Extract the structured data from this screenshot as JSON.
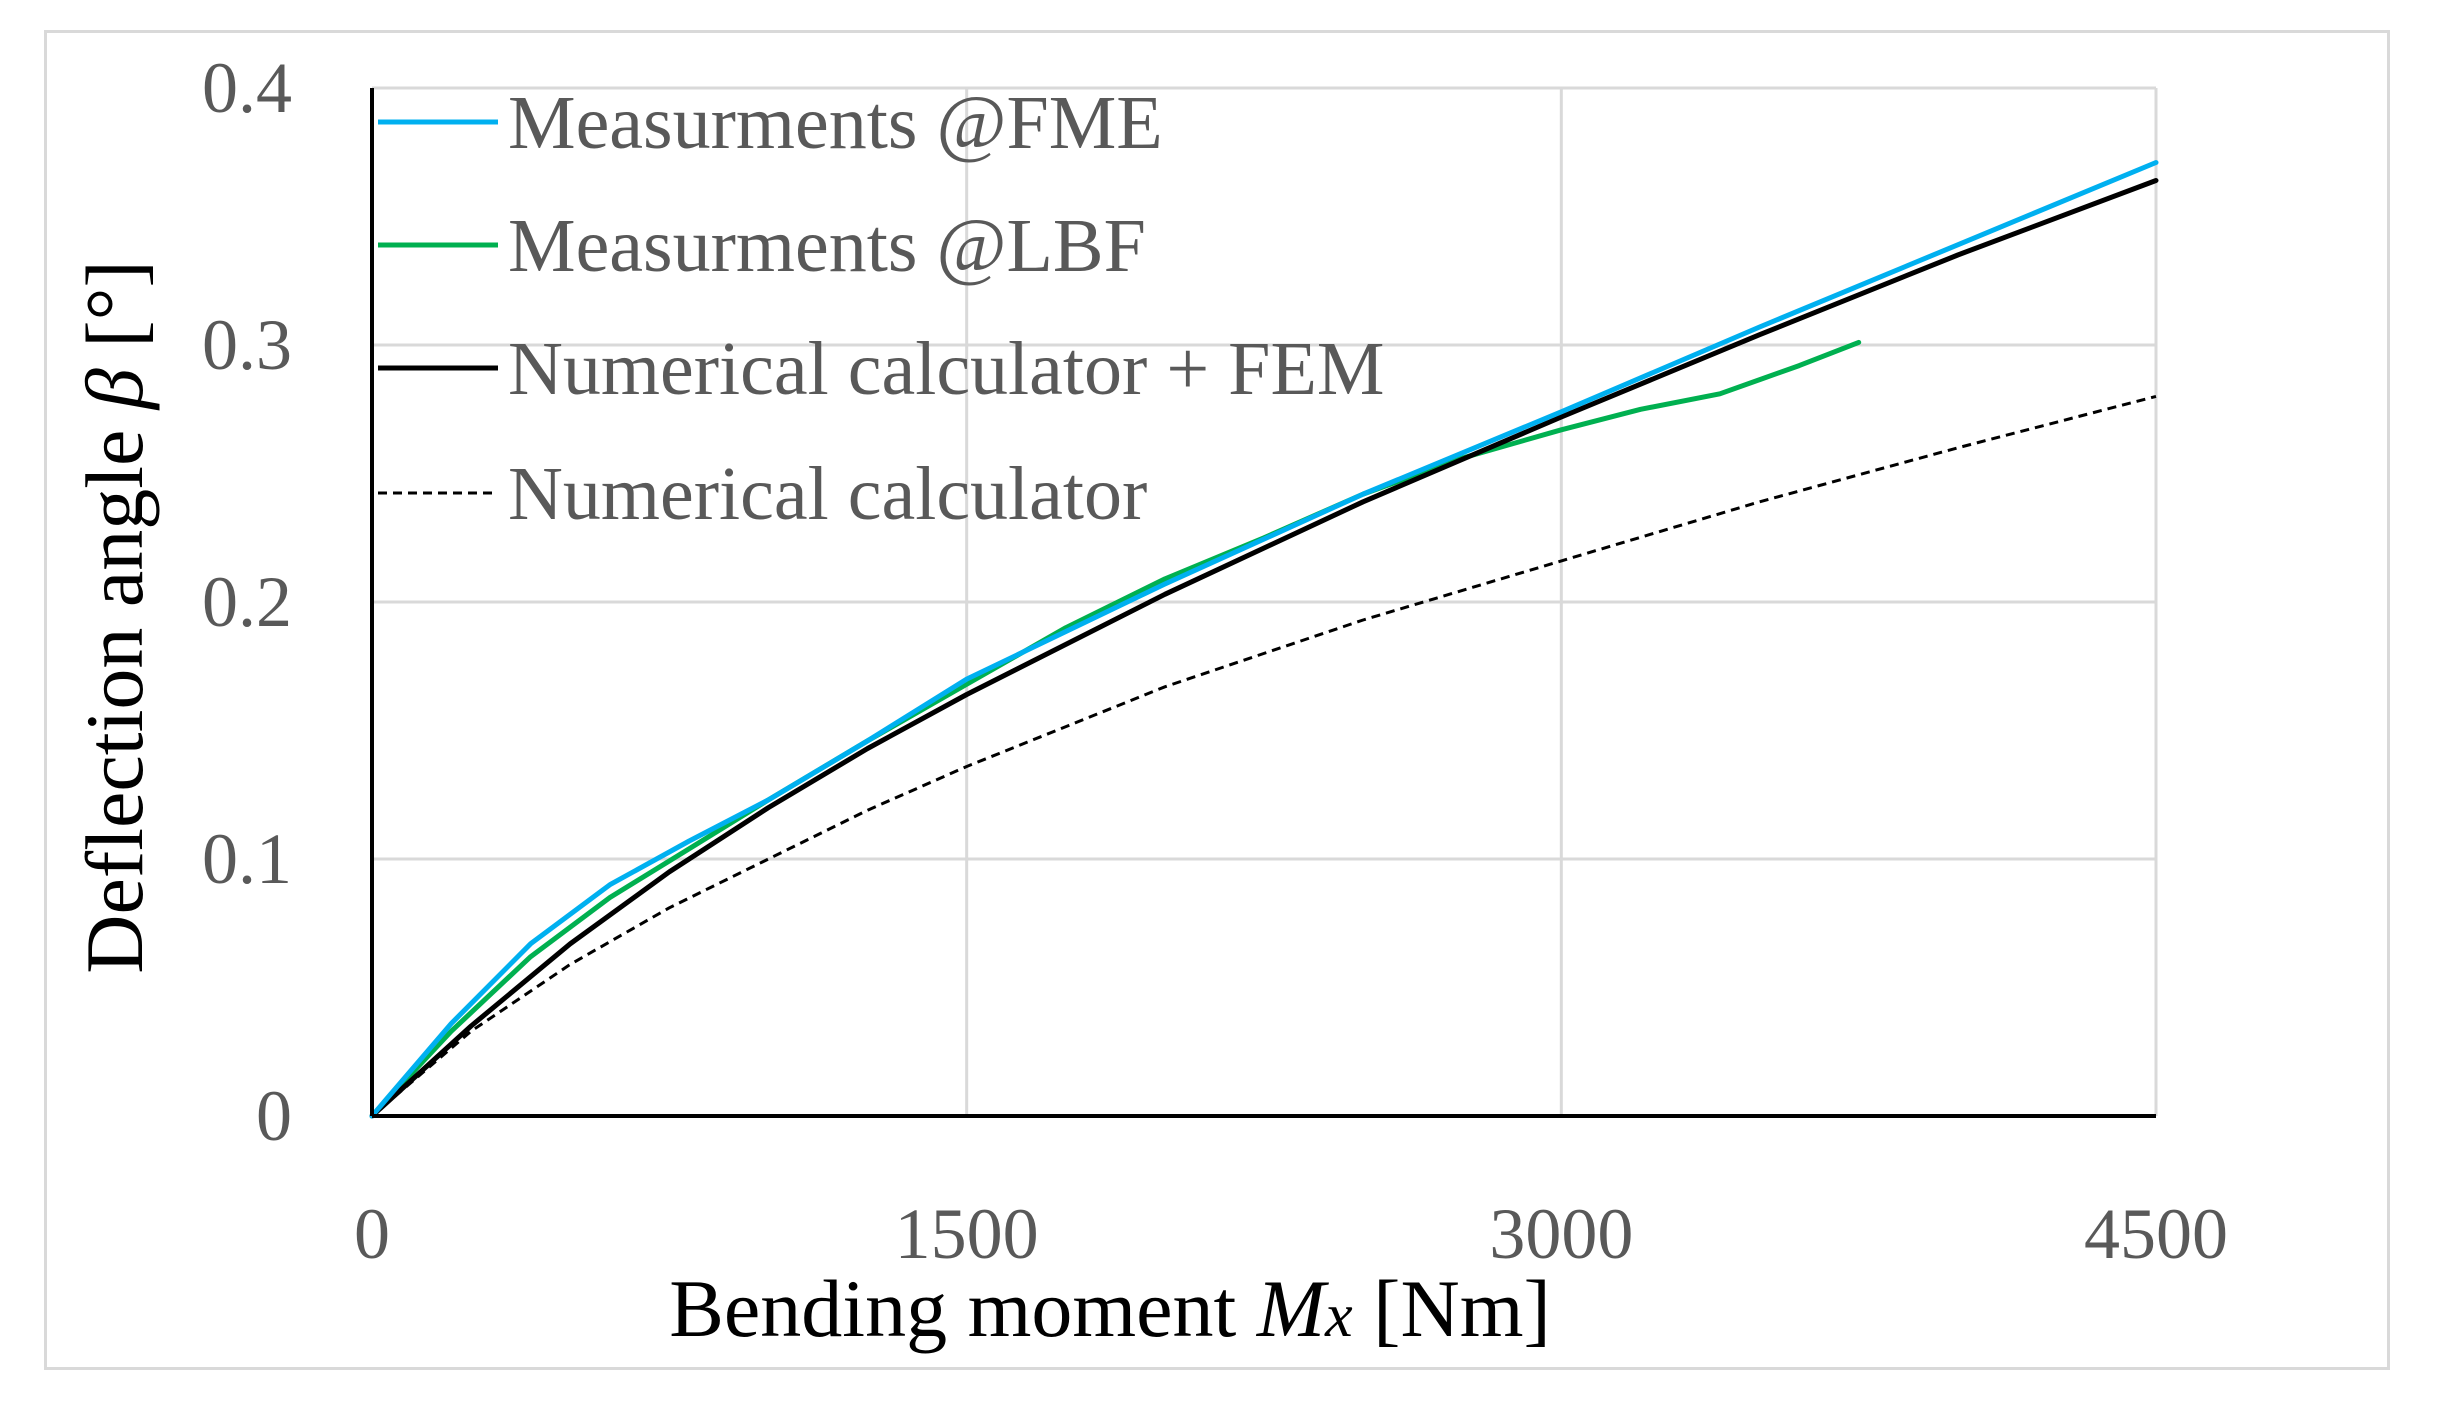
{
  "chart_data": {
    "type": "line",
    "xlabel": {
      "text": "Bending moment ",
      "sym": "M",
      "sub": "x",
      "unit": " [Nm]"
    },
    "ylabel": {
      "text": "Deflection angle ",
      "sym": "β",
      "unit": " [°]"
    },
    "xlim": [
      0,
      4500
    ],
    "ylim": [
      0,
      0.4
    ],
    "xticks": [
      0,
      1500,
      3000,
      4500
    ],
    "xtick_labels": [
      "0",
      "1500",
      "3000",
      "4500"
    ],
    "yticks": [
      0,
      0.1,
      0.2,
      0.3,
      0.4
    ],
    "ytick_labels": [
      "0",
      "0.1",
      "0.2",
      "0.3",
      "0.4"
    ],
    "grid": true,
    "legend_position": "top-left",
    "series": [
      {
        "name": "Measurments @FME",
        "color": "#00b0f0",
        "dash": "solid",
        "x": [
          0,
          200,
          400,
          600,
          800,
          1000,
          1250,
          1500,
          2000,
          2500,
          3000,
          3500,
          4000,
          4500
        ],
        "y": [
          0,
          0.036,
          0.067,
          0.09,
          0.107,
          0.123,
          0.146,
          0.17,
          0.207,
          0.242,
          0.274,
          0.307,
          0.339,
          0.371
        ]
      },
      {
        "name": "Measurments @LBF",
        "color": "#00b050",
        "dash": "solid",
        "x": [
          0,
          200,
          400,
          600,
          800,
          1000,
          1250,
          1500,
          1750,
          2000,
          2250,
          2500,
          2750,
          3000,
          3200,
          3400,
          3600,
          3750
        ],
        "y": [
          0,
          0.033,
          0.062,
          0.085,
          0.104,
          0.123,
          0.146,
          0.168,
          0.19,
          0.209,
          0.225,
          0.242,
          0.256,
          0.267,
          0.275,
          0.281,
          0.292,
          0.301
        ]
      },
      {
        "name": "Numerical calculator + FEM",
        "color": "#000000",
        "dash": "solid",
        "x": [
          0,
          250,
          500,
          750,
          1000,
          1250,
          1500,
          2000,
          2500,
          3000,
          3500,
          4000,
          4500
        ],
        "y": [
          0,
          0.035,
          0.067,
          0.095,
          0.12,
          0.143,
          0.164,
          0.203,
          0.239,
          0.272,
          0.304,
          0.335,
          0.364
        ]
      },
      {
        "name": "Numerical calculator",
        "color": "#000000",
        "dash": "dashed",
        "x": [
          0,
          250,
          500,
          750,
          1000,
          1250,
          1500,
          2000,
          2500,
          3000,
          3500,
          4000,
          4500
        ],
        "y": [
          0,
          0.033,
          0.059,
          0.081,
          0.1,
          0.119,
          0.136,
          0.167,
          0.193,
          0.216,
          0.239,
          0.26,
          0.28
        ]
      }
    ]
  }
}
